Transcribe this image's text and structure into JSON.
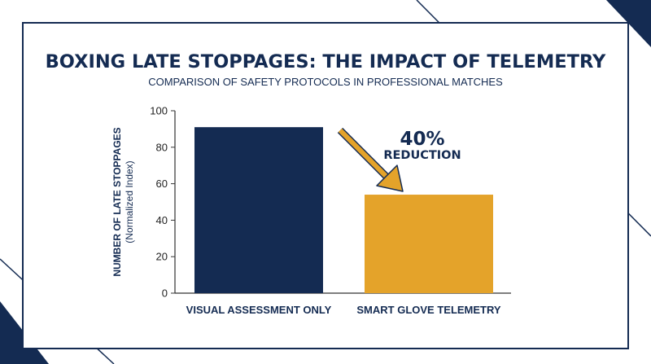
{
  "colors": {
    "navy": "#142b52",
    "gold": "#e4a32a",
    "axis": "#333333",
    "text": "#142b52"
  },
  "chart_data": {
    "type": "bar",
    "title": "BOXING LATE STOPPAGES: THE IMPACT OF TELEMETRY",
    "subtitle": "COMPARISON OF SAFETY PROTOCOLS IN PROFESSIONAL MATCHES",
    "ylabel": "NUMBER OF LATE STOPPAGES",
    "ylabel_sub": "(Normalized Index)",
    "xlabel": "",
    "ylim": [
      0,
      100
    ],
    "yticks": [
      0,
      20,
      40,
      60,
      80,
      100
    ],
    "yticks_labels": [
      "0",
      "20",
      "40",
      "60",
      "80",
      "100"
    ],
    "categories": [
      "VISUAL ASSESSMENT ONLY",
      "SMART GLOVE TELEMETRY"
    ],
    "values": [
      91,
      54
    ],
    "bar_colors": [
      "#142b52",
      "#e4a32a"
    ],
    "grid": false,
    "annotation": {
      "value": "40%",
      "text": "REDUCTION",
      "arrow_color": "#e4a32a"
    }
  }
}
